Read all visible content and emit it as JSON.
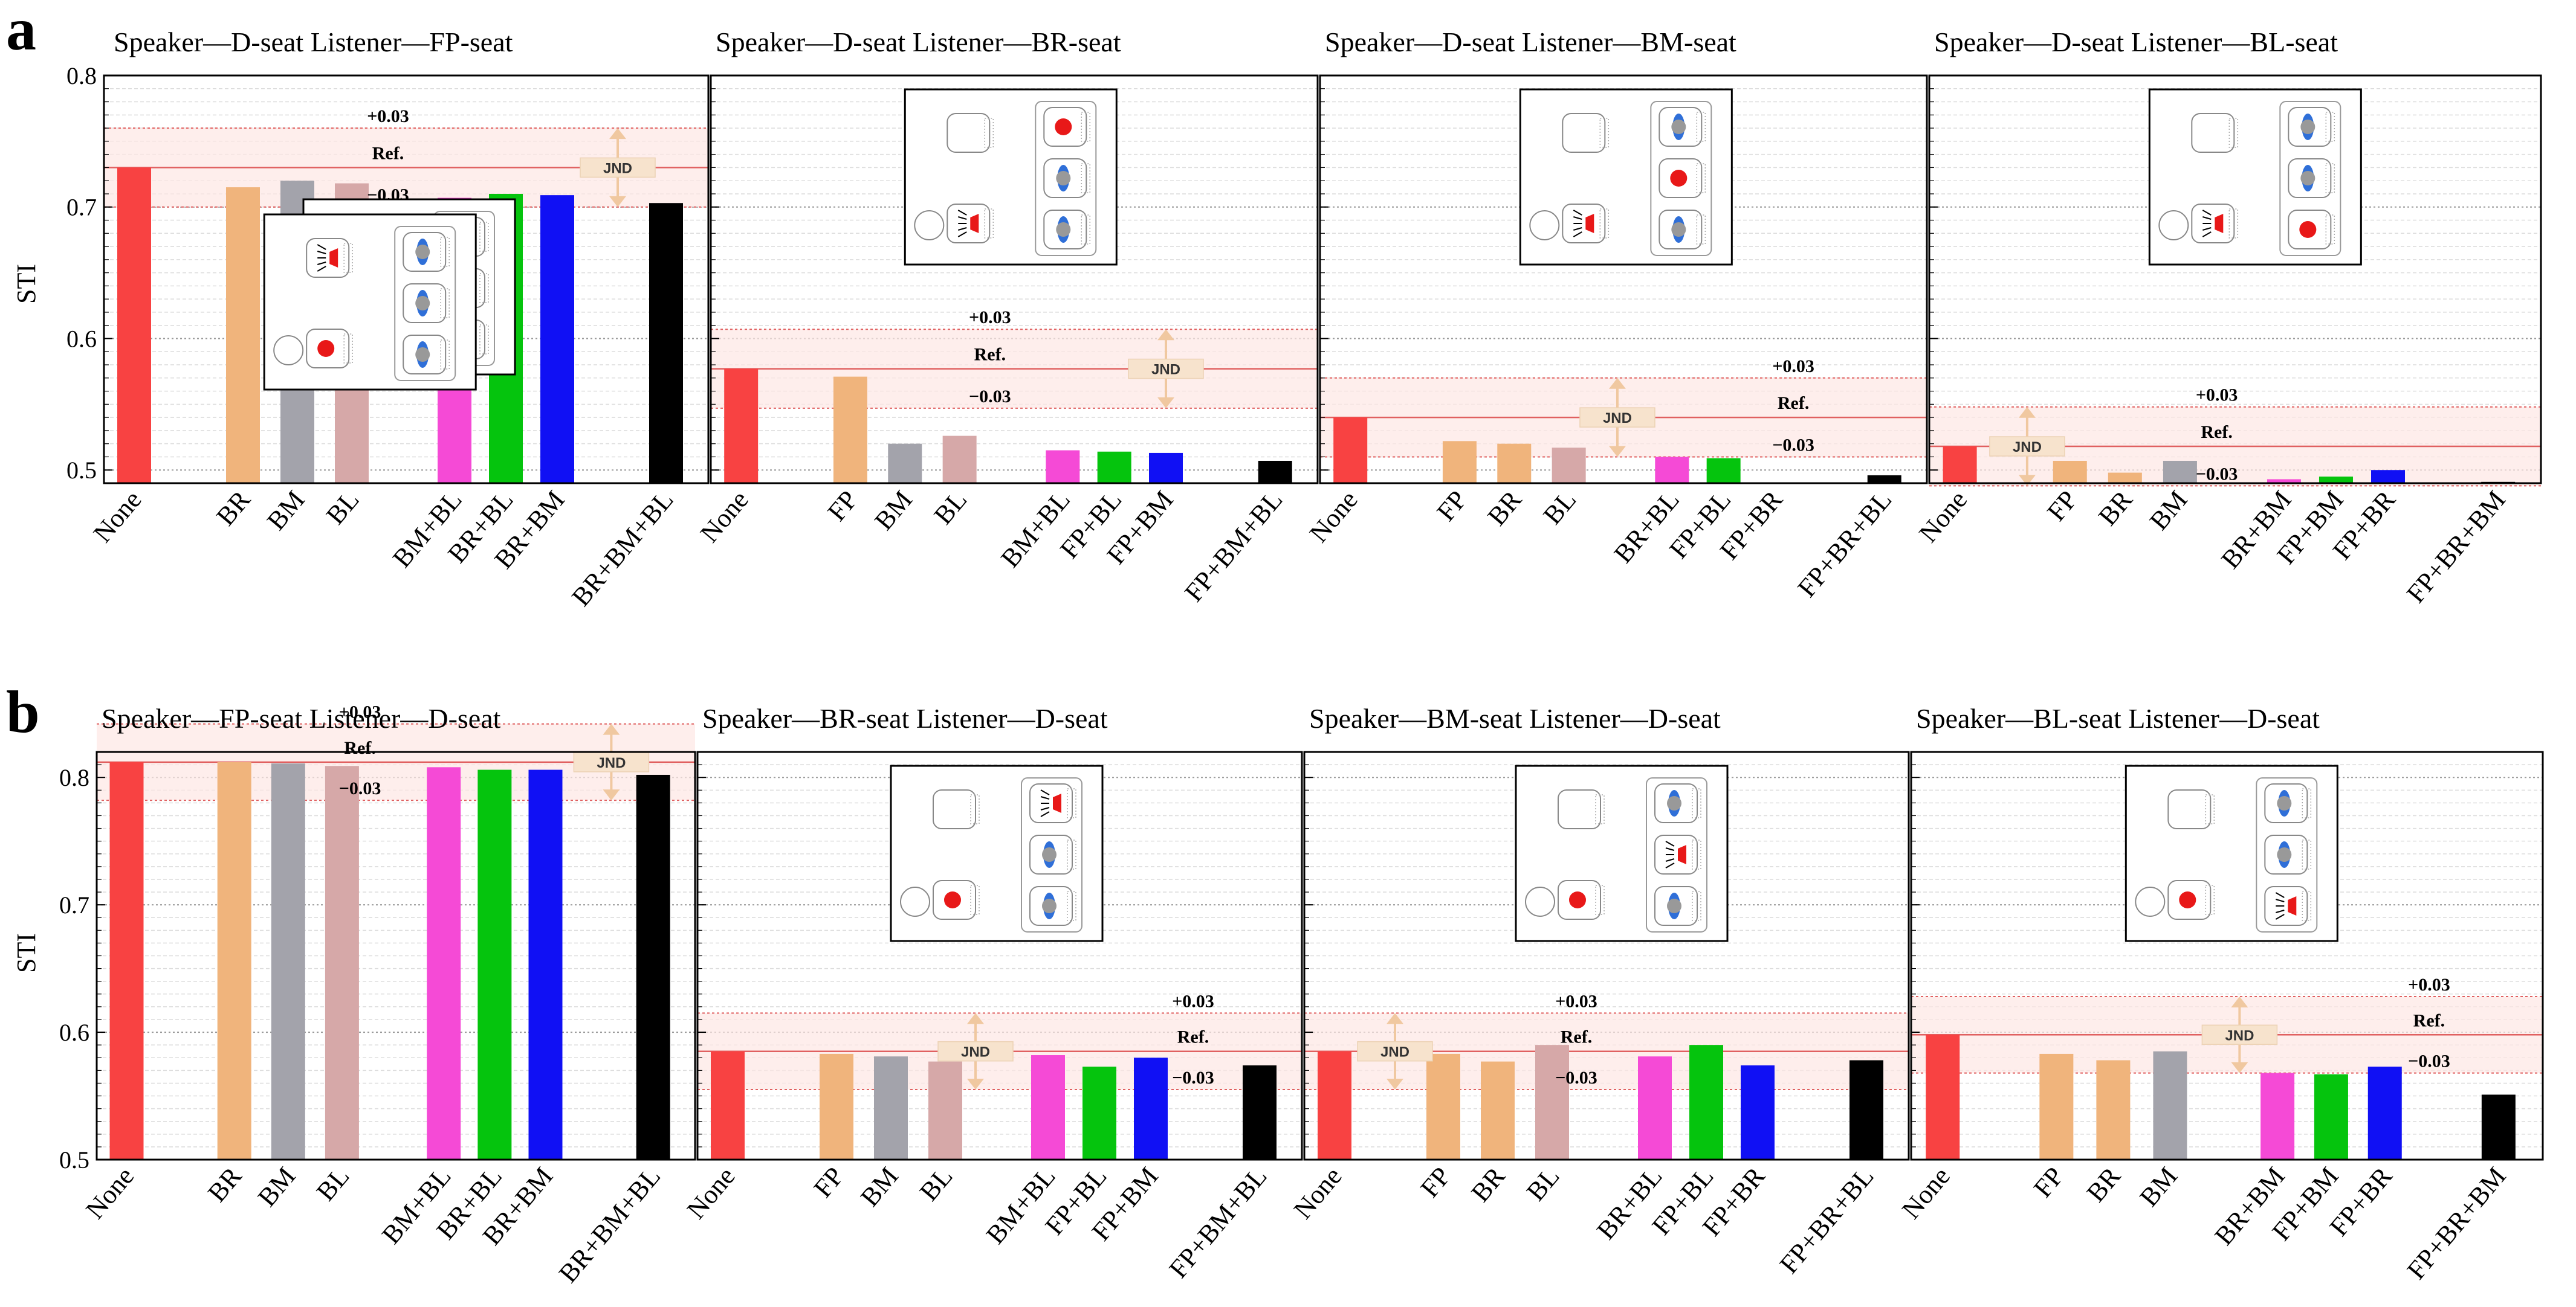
{
  "figure": {
    "panel_labels": [
      "a",
      "b"
    ],
    "y_label": "STI",
    "annotations": {
      "plus": "+0.03",
      "ref": "Ref.",
      "minus": "−0.03",
      "jnd": "JND"
    },
    "colors": {
      "None": "#f84242",
      "FP": "#f0b47c",
      "BR": "#f0b47c",
      "BM": "#a3a3ab",
      "BL": "#d6a8a8",
      "combo1": "#f54ad6",
      "combo2": "#05c40d",
      "combo3": "#1010f4",
      "triple": "#000000",
      "ref_line": "#e06060",
      "band": "#fde7e4"
    }
  },
  "chart_data": [
    {
      "type": "bar",
      "row": "a",
      "title_speaker": "Speaker—D-seat",
      "title_listener": "Listener—FP-seat",
      "ylabel": "STI",
      "ylim": [
        0.49,
        0.8
      ],
      "yticks": [
        0.5,
        0.6,
        0.7,
        0.8
      ],
      "ref": 0.73,
      "categories": [
        "None",
        "BR",
        "BM",
        "BL",
        "BM+BL",
        "BR+BL",
        "BR+BM",
        "BR+BM+BL"
      ],
      "values": [
        0.73,
        0.715,
        0.72,
        0.718,
        0.707,
        0.71,
        0.709,
        0.703
      ],
      "speaker_seat": "D",
      "listener_seat": "FP"
    },
    {
      "type": "bar",
      "row": "a",
      "title_speaker": "Speaker—D-seat",
      "title_listener": "Listener—BR-seat",
      "ylabel": "STI",
      "ylim": [
        0.49,
        0.8
      ],
      "yticks": [
        0.5,
        0.6,
        0.7,
        0.8
      ],
      "ref": 0.577,
      "categories": [
        "None",
        "FP",
        "BM",
        "BL",
        "BM+BL",
        "FP+BL",
        "FP+BM",
        "FP+BM+BL"
      ],
      "values": [
        0.577,
        0.571,
        0.52,
        0.526,
        0.515,
        0.514,
        0.513,
        0.507
      ],
      "speaker_seat": "D",
      "listener_seat": "BR"
    },
    {
      "type": "bar",
      "row": "a",
      "title_speaker": "Speaker—D-seat",
      "title_listener": "Listener—BM-seat",
      "ylabel": "STI",
      "ylim": [
        0.49,
        0.8
      ],
      "yticks": [
        0.5,
        0.6,
        0.7,
        0.8
      ],
      "ref": 0.54,
      "categories": [
        "None",
        "FP",
        "BR",
        "BL",
        "BR+BL",
        "FP+BL",
        "FP+BR",
        "FP+BR+BL"
      ],
      "values": [
        0.54,
        0.522,
        0.52,
        0.517,
        0.51,
        0.509,
        0.49,
        0.496
      ],
      "speaker_seat": "D",
      "listener_seat": "BM"
    },
    {
      "type": "bar",
      "row": "a",
      "title_speaker": "Speaker—D-seat",
      "title_listener": "Listener—BL-seat",
      "ylabel": "STI",
      "ylim": [
        0.49,
        0.8
      ],
      "yticks": [
        0.5,
        0.6,
        0.7,
        0.8
      ],
      "ref": 0.518,
      "categories": [
        "None",
        "FP",
        "BR",
        "BM",
        "BR+BM",
        "FP+BM",
        "FP+BR",
        "FP+BR+BM"
      ],
      "values": [
        0.518,
        0.507,
        0.498,
        0.507,
        0.493,
        0.495,
        0.5,
        0.491
      ],
      "speaker_seat": "D",
      "listener_seat": "BL"
    },
    {
      "type": "bar",
      "row": "b",
      "title_speaker": "Speaker—FP-seat",
      "title_listener": "Listener—D-seat",
      "ylabel": "STI",
      "ylim": [
        0.5,
        0.82
      ],
      "yticks": [
        0.5,
        0.6,
        0.7,
        0.8
      ],
      "ref": 0.812,
      "categories": [
        "None",
        "BR",
        "BM",
        "BL",
        "BM+BL",
        "BR+BL",
        "BR+BM",
        "BR+BM+BL"
      ],
      "values": [
        0.812,
        0.812,
        0.811,
        0.809,
        0.808,
        0.806,
        0.806,
        0.802
      ],
      "speaker_seat": "FP",
      "listener_seat": "D"
    },
    {
      "type": "bar",
      "row": "b",
      "title_speaker": "Speaker—BR-seat",
      "title_listener": "Listener—D-seat",
      "ylabel": "STI",
      "ylim": [
        0.5,
        0.82
      ],
      "yticks": [
        0.5,
        0.6,
        0.7,
        0.8
      ],
      "ref": 0.585,
      "categories": [
        "None",
        "FP",
        "BM",
        "BL",
        "BM+BL",
        "FP+BL",
        "FP+BM",
        "FP+BM+BL"
      ],
      "values": [
        0.585,
        0.583,
        0.581,
        0.577,
        0.582,
        0.573,
        0.58,
        0.574
      ],
      "speaker_seat": "BR",
      "listener_seat": "D"
    },
    {
      "type": "bar",
      "row": "b",
      "title_speaker": "Speaker—BM-seat",
      "title_listener": "Listener—D-seat",
      "ylabel": "STI",
      "ylim": [
        0.5,
        0.82
      ],
      "yticks": [
        0.5,
        0.6,
        0.7,
        0.8
      ],
      "ref": 0.585,
      "categories": [
        "None",
        "FP",
        "BR",
        "BL",
        "BR+BL",
        "FP+BL",
        "FP+BR",
        "FP+BR+BL"
      ],
      "values": [
        0.585,
        0.583,
        0.577,
        0.59,
        0.581,
        0.59,
        0.574,
        0.578
      ],
      "speaker_seat": "BM",
      "listener_seat": "D"
    },
    {
      "type": "bar",
      "row": "b",
      "title_speaker": "Speaker—BL-seat",
      "title_listener": "Listener—D-seat",
      "ylabel": "STI",
      "ylim": [
        0.5,
        0.82
      ],
      "yticks": [
        0.5,
        0.6,
        0.7,
        0.8
      ],
      "ref": 0.598,
      "categories": [
        "None",
        "FP",
        "BR",
        "BM",
        "BR+BM",
        "FP+BM",
        "FP+BR",
        "FP+BR+BM"
      ],
      "values": [
        0.598,
        0.583,
        0.578,
        0.585,
        0.568,
        0.567,
        0.573,
        0.551
      ],
      "speaker_seat": "BL",
      "listener_seat": "D"
    }
  ]
}
